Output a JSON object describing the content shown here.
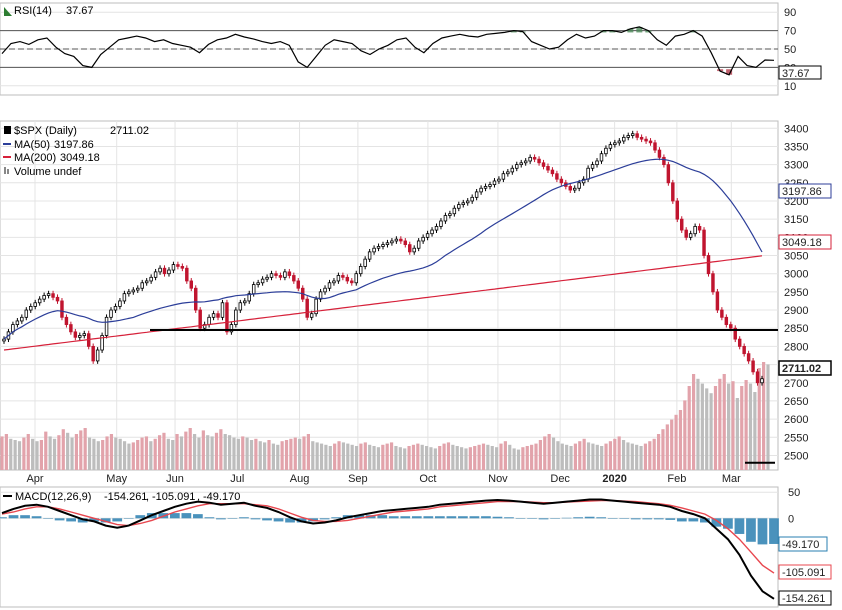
{
  "chart_data": [
    {
      "type": "line",
      "panel": "rsi",
      "legend": {
        "name": "RSI(14)",
        "value": "37.67"
      },
      "ylim": [
        0,
        100
      ],
      "y_ticks": [
        "90",
        "70",
        "50",
        "30",
        "10"
      ],
      "reference_lines": [
        70,
        50,
        30
      ],
      "last_value_label": "37.67",
      "series": [
        {
          "name": "RSI(14)",
          "color": "#000000",
          "values": [
            45,
            56,
            58,
            55,
            60,
            62,
            52,
            45,
            42,
            32,
            30,
            44,
            52,
            60,
            62,
            64,
            62,
            58,
            60,
            56,
            54,
            52,
            46,
            55,
            60,
            62,
            66,
            63,
            61,
            58,
            56,
            58,
            54,
            36,
            30,
            42,
            54,
            60,
            58,
            56,
            48,
            44,
            50,
            54,
            60,
            62,
            52,
            46,
            56,
            62,
            64,
            66,
            64,
            63,
            66,
            67,
            68,
            70,
            69,
            58,
            54,
            50,
            52,
            60,
            66,
            62,
            64,
            70,
            70,
            68,
            72,
            74,
            70,
            60,
            54,
            64,
            66,
            70,
            64,
            46,
            26,
            22,
            42,
            32,
            30,
            38,
            37.67
          ]
        }
      ]
    },
    {
      "type": "candlestick",
      "panel": "price",
      "title": "$SPX (Daily)",
      "title_value": "2711.02",
      "ylim": [
        2460,
        3420
      ],
      "y_ticks": [
        "3400",
        "3350",
        "3300",
        "3250",
        "3200",
        "3150",
        "3100",
        "3050",
        "3000",
        "2950",
        "2900",
        "2850",
        "2800",
        "2750",
        "2700",
        "2650",
        "2600",
        "2550",
        "2500"
      ],
      "x_ticks": [
        "Apr",
        "May",
        "Jun",
        "Jul",
        "Aug",
        "Sep",
        "Oct",
        "Nov",
        "Dec",
        "2020",
        "Feb",
        "Mar"
      ],
      "last_close_label": "2711.02",
      "ma50_label": "3197.86",
      "ma200_label": "3049.18",
      "support_level": 2845,
      "closes": [
        2820,
        2840,
        2860,
        2870,
        2880,
        2900,
        2910,
        2920,
        2930,
        2940,
        2945,
        2935,
        2925,
        2880,
        2860,
        2840,
        2825,
        2830,
        2835,
        2800,
        2760,
        2790,
        2830,
        2880,
        2900,
        2910,
        2925,
        2945,
        2950,
        2955,
        2960,
        2975,
        2980,
        2990,
        3005,
        3015,
        3000,
        3010,
        3025,
        3020,
        3015,
        2980,
        2960,
        2900,
        2850,
        2860,
        2880,
        2890,
        2880,
        2920,
        2840,
        2860,
        2900,
        2920,
        2925,
        2945,
        2970,
        2975,
        2985,
        2990,
        3000,
        2995,
        2990,
        3005,
        2995,
        2980,
        2960,
        2930,
        2880,
        2890,
        2930,
        2950,
        2960,
        2975,
        2980,
        2995,
        2990,
        2980,
        2975,
        3000,
        3020,
        3040,
        3060,
        3070,
        3075,
        3080,
        3085,
        3090,
        3095,
        3090,
        3080,
        3060,
        3070,
        3090,
        3100,
        3110,
        3120,
        3130,
        3145,
        3160,
        3165,
        3180,
        3190,
        3195,
        3200,
        3210,
        3225,
        3235,
        3240,
        3245,
        3255,
        3260,
        3275,
        3280,
        3290,
        3300,
        3305,
        3310,
        3320,
        3315,
        3305,
        3295,
        3285,
        3275,
        3260,
        3250,
        3240,
        3230,
        3235,
        3250,
        3260,
        3290,
        3300,
        3310,
        3330,
        3345,
        3355,
        3360,
        3365,
        3375,
        3380,
        3385,
        3375,
        3370,
        3365,
        3360,
        3340,
        3320,
        3300,
        3250,
        3200,
        3150,
        3120,
        3100,
        3110,
        3130,
        3120,
        3050,
        3000,
        2950,
        2900,
        2880,
        2860,
        2850,
        2820,
        2800,
        2780,
        2760,
        2730,
        2700,
        2711.02
      ],
      "volume_note": "Volume undef",
      "volume": [
        28,
        30,
        26,
        25,
        24,
        27,
        30,
        26,
        24,
        25,
        32,
        28,
        26,
        29,
        34,
        31,
        27,
        30,
        33,
        35,
        27,
        26,
        24,
        25,
        28,
        30,
        27,
        26,
        24,
        22,
        23,
        25,
        27,
        28,
        24,
        26,
        29,
        31,
        26,
        25,
        30,
        28,
        32,
        35,
        30,
        27,
        33,
        29,
        28,
        31,
        34,
        30,
        29,
        27,
        26,
        28,
        27,
        25,
        26,
        24,
        23,
        25,
        22,
        21,
        24,
        25,
        26,
        27,
        26,
        28,
        30,
        24,
        23,
        22,
        21,
        20,
        22,
        24,
        23,
        22,
        21,
        20,
        22,
        23,
        21,
        20,
        19,
        21,
        22,
        23,
        20,
        19,
        18,
        20,
        21,
        22,
        21,
        20,
        19,
        18,
        20,
        22,
        23,
        21,
        20,
        19,
        18,
        19,
        20,
        21,
        22,
        21,
        20,
        19,
        22,
        24,
        21,
        18,
        17,
        19,
        20,
        21,
        22,
        25,
        28,
        30,
        27,
        24,
        22,
        21,
        20,
        22,
        24,
        26,
        23,
        22,
        21,
        20,
        22,
        24,
        26,
        28,
        25,
        23,
        22,
        21,
        20,
        22,
        24,
        26,
        30,
        34,
        38,
        42,
        46,
        50,
        58,
        70,
        80,
        76,
        72,
        68,
        64,
        70,
        76,
        80,
        72,
        74,
        60,
        70,
        75,
        72,
        65,
        85,
        90,
        88
      ]
    },
    {
      "type": "line",
      "panel": "macd",
      "legend": {
        "name": "MACD(12,26,9)",
        "macd": "-154.261",
        "signal": "-105.091",
        "histogram": "-49.170"
      },
      "ylim": [
        -170,
        60
      ],
      "y_ticks": [
        "50",
        "0"
      ],
      "labels": {
        "histogram": "-49.170",
        "signal": "-105.091",
        "macd": "-154.261"
      },
      "series": [
        {
          "name": "MACD",
          "color": "#000000",
          "values": [
            10,
            18,
            24,
            26,
            22,
            14,
            6,
            -2,
            -6,
            -14,
            -18,
            -14,
            -4,
            6,
            14,
            22,
            28,
            32,
            30,
            26,
            28,
            30,
            24,
            20,
            12,
            2,
            -6,
            -10,
            -8,
            -4,
            2,
            6,
            10,
            14,
            16,
            18,
            20,
            22,
            26,
            28,
            30,
            32,
            34,
            35,
            34,
            32,
            30,
            28,
            30,
            32,
            34,
            36,
            36,
            34,
            32,
            30,
            28,
            26,
            22,
            14,
            8,
            0,
            -20,
            -40,
            -70,
            -110,
            -140,
            -154.261
          ]
        },
        {
          "name": "Signal",
          "color": "#e8474f",
          "values": [
            8,
            12,
            18,
            22,
            22,
            18,
            12,
            6,
            0,
            -6,
            -12,
            -14,
            -10,
            -4,
            4,
            12,
            18,
            24,
            28,
            28,
            28,
            28,
            26,
            24,
            18,
            10,
            2,
            -4,
            -6,
            -6,
            -4,
            0,
            4,
            8,
            12,
            14,
            16,
            18,
            22,
            24,
            26,
            28,
            30,
            32,
            32,
            32,
            31,
            30,
            30,
            31,
            32,
            33,
            34,
            34,
            33,
            32,
            30,
            28,
            25,
            20,
            14,
            8,
            -4,
            -20,
            -40,
            -65,
            -90,
            -105.091
          ]
        },
        {
          "name": "Histogram",
          "color": "#2a7fb0",
          "style": "bars",
          "values": [
            2,
            6,
            6,
            4,
            0,
            -4,
            -6,
            -8,
            -6,
            -8,
            -6,
            0,
            6,
            10,
            10,
            10,
            10,
            8,
            2,
            -2,
            0,
            2,
            -2,
            -4,
            -6,
            -8,
            -8,
            -6,
            -2,
            2,
            6,
            6,
            6,
            6,
            4,
            4,
            4,
            4,
            4,
            4,
            4,
            4,
            4,
            3,
            2,
            0,
            -1,
            -2,
            0,
            1,
            2,
            3,
            2,
            0,
            -1,
            -2,
            -2,
            -2,
            -3,
            -6,
            -6,
            -8,
            -16,
            -20,
            -30,
            -45,
            -50,
            -49.17
          ]
        }
      ]
    }
  ]
}
